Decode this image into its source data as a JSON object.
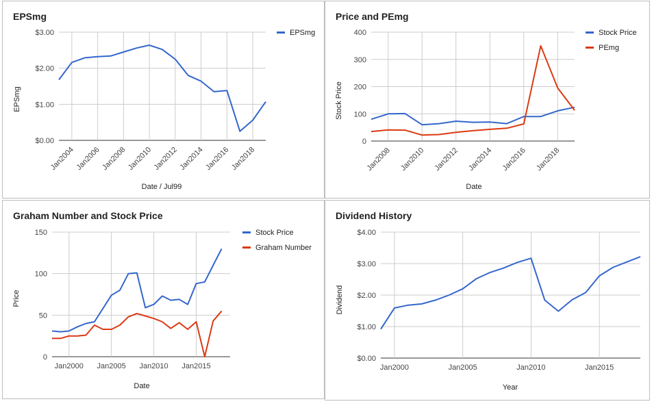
{
  "colors": {
    "blue": "#3366cc",
    "red": "#dc3912"
  },
  "chart_data": [
    {
      "type": "line",
      "title": "EPSmg",
      "xlabel": "Date / Jul99",
      "ylabel": "EPSmg",
      "ylim": [
        0,
        3
      ],
      "yticks": [
        "$0.00",
        "$1.00",
        "$2.00",
        "$3.00"
      ],
      "xlim": [
        2003,
        2019
      ],
      "xticks": [
        2004,
        2006,
        2008,
        2010,
        2012,
        2014,
        2016,
        2018
      ],
      "xtick_labels": [
        "Jan2004",
        "Jan2006",
        "Jan2008",
        "Jan2010",
        "Jan2012",
        "Jan2014",
        "Jan2016",
        "Jan2018"
      ],
      "x": [
        2003,
        2004,
        2005,
        2006,
        2007,
        2008,
        2009,
        2010,
        2011,
        2012,
        2013,
        2014,
        2015,
        2016,
        2017,
        2018,
        2019
      ],
      "series": [
        {
          "name": "EPSmg",
          "color": "#3366cc",
          "values": [
            1.68,
            2.16,
            2.29,
            2.32,
            2.34,
            2.45,
            2.56,
            2.64,
            2.52,
            2.25,
            1.8,
            1.64,
            1.35,
            1.38,
            0.25,
            0.56,
            1.07
          ]
        }
      ],
      "legend": "top-right"
    },
    {
      "type": "line",
      "title": "Price and PEmg",
      "xlabel": "Date",
      "ylabel": "Stock Price",
      "ylim": [
        0,
        400
      ],
      "yticks": [
        "0",
        "100",
        "200",
        "300",
        "400"
      ],
      "xlim": [
        2007,
        2019
      ],
      "xticks": [
        2008,
        2010,
        2012,
        2014,
        2016,
        2018
      ],
      "xtick_labels": [
        "Jan2008",
        "Jan2010",
        "Jan2012",
        "Jan2014",
        "Jan2016",
        "Jan2018"
      ],
      "x": [
        2007,
        2008,
        2009,
        2010,
        2011,
        2012,
        2013,
        2014,
        2015,
        2016,
        2017,
        2018,
        2019
      ],
      "series": [
        {
          "name": "Stock Price",
          "color": "#3366cc",
          "values": [
            80,
            100,
            101,
            60,
            64,
            73,
            69,
            70,
            64,
            90,
            90,
            111,
            124
          ]
        },
        {
          "name": "PEmg",
          "color": "#dc3912",
          "values": [
            35,
            41,
            40,
            22,
            24,
            32,
            38,
            43,
            47,
            63,
            350,
            195,
            113
          ]
        }
      ],
      "legend": "top-right"
    },
    {
      "type": "line",
      "title": "Graham Number and Stock Price",
      "xlabel": "Date",
      "ylabel": "Price",
      "ylim": [
        0,
        150
      ],
      "yticks": [
        "0",
        "50",
        "100",
        "150"
      ],
      "xlim": [
        1998,
        2019
      ],
      "xticks": [
        2000,
        2005,
        2010,
        2015
      ],
      "xtick_labels": [
        "Jan2000",
        "Jan2005",
        "Jan2010",
        "Jan2015"
      ],
      "x": [
        1998,
        1999,
        2000,
        2001,
        2002,
        2003,
        2004,
        2005,
        2006,
        2007,
        2008,
        2009,
        2010,
        2011,
        2012,
        2013,
        2014,
        2015,
        2016,
        2017,
        2018,
        2019
      ],
      "series": [
        {
          "name": "Stock Price",
          "color": "#3366cc",
          "values": [
            31,
            30,
            31,
            36,
            40,
            42,
            58,
            74,
            80,
            100,
            101,
            59,
            63,
            73,
            68,
            69,
            63,
            88,
            90,
            110,
            130,
            null
          ]
        },
        {
          "name": "Graham Number",
          "color": "#dc3912",
          "values": [
            22,
            22,
            25,
            25,
            26,
            38,
            33,
            33,
            38,
            48,
            52,
            49,
            46,
            42,
            34,
            41,
            33,
            42,
            0,
            43,
            55,
            null
          ]
        }
      ],
      "legend": "top-right"
    },
    {
      "type": "line",
      "title": "Dividend History",
      "xlabel": "Year",
      "ylabel": "Dividend",
      "ylim": [
        0,
        4
      ],
      "yticks": [
        "$0.00",
        "$1.00",
        "$2.00",
        "$3.00",
        "$4.00"
      ],
      "xlim": [
        1999,
        2018
      ],
      "xticks": [
        2000,
        2005,
        2010,
        2015
      ],
      "xtick_labels": [
        "Jan2000",
        "Jan2005",
        "Jan2010",
        "Jan2015"
      ],
      "x": [
        1999,
        2000,
        2001,
        2002,
        2003,
        2004,
        2005,
        2006,
        2007,
        2008,
        2009,
        2010,
        2011,
        2012,
        2013,
        2014,
        2015,
        2016,
        2017,
        2018
      ],
      "series": [
        {
          "name": "",
          "color": "#3366cc",
          "values": [
            0.92,
            1.59,
            1.68,
            1.72,
            1.84,
            2.0,
            2.2,
            2.52,
            2.72,
            2.86,
            3.04,
            3.17,
            1.84,
            1.49,
            1.85,
            2.08,
            2.61,
            2.88,
            3.05,
            3.22
          ]
        }
      ],
      "legend": "none"
    }
  ]
}
